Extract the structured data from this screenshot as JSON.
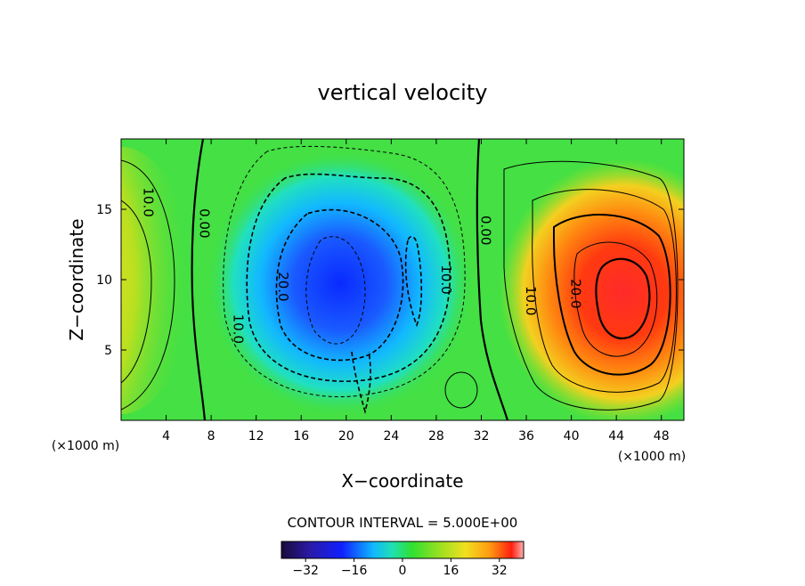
{
  "chart_data": {
    "type": "heatmap",
    "title": "vertical velocity",
    "xlabel": "X−coordinate",
    "ylabel": "Z−coordinate",
    "x_unit": "(×1000 m)",
    "y_unit": "(×1000 m)",
    "xlim": [
      0,
      50
    ],
    "ylim": [
      0,
      20
    ],
    "x_ticks": [
      "4",
      "8",
      "12",
      "16",
      "20",
      "24",
      "28",
      "32",
      "36",
      "40",
      "44",
      "48"
    ],
    "y_ticks": [
      "5",
      "10",
      "15"
    ],
    "contour_labels": [
      {
        "text": "10.0",
        "x": 2,
        "z": 15.5
      },
      {
        "text": "0.00",
        "x": 7,
        "z": 14
      },
      {
        "text": "20.0",
        "x": 14,
        "z": 9.5
      },
      {
        "text": "10.0",
        "x": 10,
        "z": 6.5
      },
      {
        "text": "10.0",
        "x": 28.5,
        "z": 10
      },
      {
        "text": "0.00",
        "x": 32,
        "z": 13.5
      },
      {
        "text": "10.0",
        "x": 36,
        "z": 8.5
      },
      {
        "text": "20.0",
        "x": 40,
        "z": 9
      }
    ],
    "features": [
      {
        "kind": "max",
        "x": 45,
        "z": 9,
        "value": 32
      },
      {
        "kind": "min",
        "x": 19,
        "z": 9,
        "value": -32
      },
      {
        "kind": "max",
        "x": 0,
        "z": 10,
        "value": 20
      }
    ],
    "contour_interval_text": "CONTOUR INTERVAL = 5.000E+00",
    "colorbar": {
      "range": [
        -40,
        40
      ],
      "ticks": [
        "−32",
        "−16",
        "0",
        "16",
        "32"
      ],
      "tick_values": [
        -32,
        -16,
        0,
        16,
        32
      ]
    }
  }
}
